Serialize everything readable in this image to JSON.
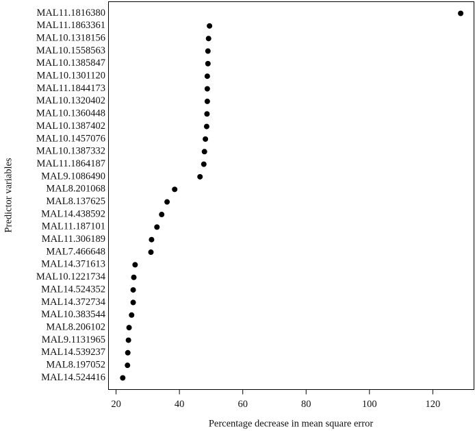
{
  "chart_data": {
    "type": "dot",
    "x_label": "Percentage decrease in mean square error",
    "y_label": "Predictor variables",
    "categories": [
      "MAL11.1816380",
      "MAL11.1863361",
      "MAL10.1318156",
      "MAL10.1558563",
      "MAL10.1385847",
      "MAL10.1301120",
      "MAL11.1844173",
      "MAL10.1320402",
      "MAL10.1360448",
      "MAL10.1387402",
      "MAL10.1457076",
      "MAL10.1387332",
      "MAL11.1864187",
      "MAL9.1086490",
      "MAL8.201068",
      "MAL8.137625",
      "MAL14.438592",
      "MAL11.187101",
      "MAL11.306189",
      "MAL7.466648",
      "MAL14.371613",
      "MAL10.1221734",
      "MAL14.524352",
      "MAL14.372734",
      "MAL10.383544",
      "MAL8.206102",
      "MAL9.1131965",
      "MAL14.539237",
      "MAL8.197052",
      "MAL14.524416"
    ],
    "values": [
      128.8,
      49.5,
      49.2,
      49.0,
      49.0,
      48.8,
      48.8,
      48.8,
      48.7,
      48.6,
      48.2,
      47.9,
      47.7,
      46.5,
      38.5,
      36.1,
      34.4,
      32.9,
      31.2,
      31.0,
      26.0,
      25.6,
      25.4,
      25.4,
      24.9,
      24.1,
      23.9,
      23.7,
      23.6,
      22.1
    ],
    "color": "#000000",
    "xlim": [
      17.6,
      133
    ],
    "xticks": [
      20,
      40,
      60,
      80,
      100,
      120
    ]
  }
}
